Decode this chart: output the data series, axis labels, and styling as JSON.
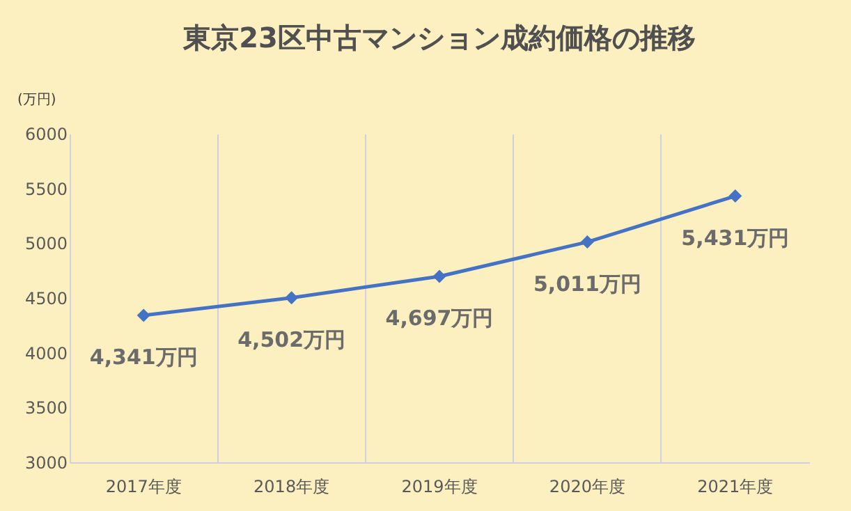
{
  "chart_data": {
    "type": "line",
    "title": "東京23区中古マンション成約価格の推移",
    "ylabel": "(万円)",
    "categories": [
      "2017年度",
      "2018年度",
      "2019年度",
      "2020年度",
      "2021年度"
    ],
    "series": [
      {
        "color": "#4472c4",
        "values": [
          4341,
          4502,
          4697,
          5011,
          5431
        ],
        "value_labels": [
          "4,341万円",
          "4,502万円",
          "4,697万円",
          "5,011万円",
          "5,431万円"
        ]
      }
    ],
    "ylim": [
      3000,
      6000
    ],
    "yticks": [
      3000,
      3500,
      4000,
      4500,
      5000,
      5500,
      6000
    ],
    "grid": "x",
    "marker": "diamond",
    "line_style": "solid"
  }
}
